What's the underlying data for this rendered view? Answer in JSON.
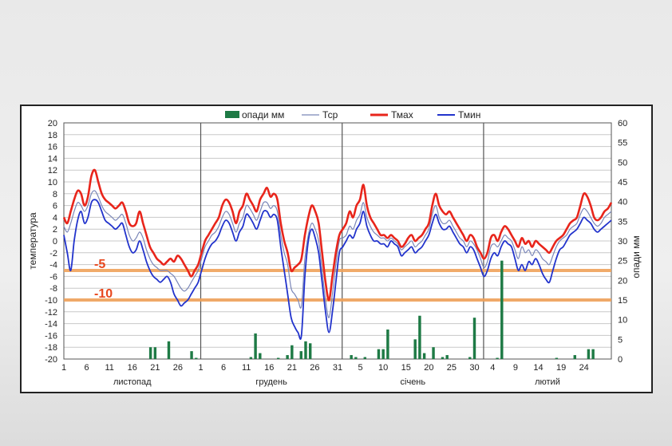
{
  "chart_data": {
    "type": "line",
    "title": "",
    "ylabel": "температура",
    "y2label": "опади мм",
    "ylim": [
      -20,
      20
    ],
    "y2lim": [
      0,
      60
    ],
    "yticks": [
      -20,
      -18,
      -16,
      -14,
      -12,
      -10,
      -8,
      -6,
      -4,
      -2,
      0,
      2,
      4,
      6,
      8,
      10,
      12,
      14,
      16,
      18,
      20
    ],
    "y2ticks": [
      0,
      5,
      10,
      15,
      20,
      25,
      30,
      35,
      40,
      45,
      50,
      55,
      60
    ],
    "xlim": [
      1,
      121
    ],
    "grid": true,
    "legend_position": "top",
    "legend": [
      {
        "name": "опади мм",
        "kind": "bar",
        "color": "#1e7a45"
      },
      {
        "name": "Тср",
        "kind": "line",
        "color": "#7a86b8"
      },
      {
        "name": "Тмах",
        "kind": "line",
        "color": "#e8251b"
      },
      {
        "name": "Тмин",
        "kind": "line",
        "color": "#2233cc"
      }
    ],
    "x_tick_labels": [
      {
        "x": 1,
        "label": "1"
      },
      {
        "x": 6,
        "label": "6"
      },
      {
        "x": 11,
        "label": "11"
      },
      {
        "x": 16,
        "label": "16"
      },
      {
        "x": 21,
        "label": "21"
      },
      {
        "x": 26,
        "label": "26"
      },
      {
        "x": 31,
        "label": "1"
      },
      {
        "x": 36,
        "label": "6"
      },
      {
        "x": 41,
        "label": "11"
      },
      {
        "x": 46,
        "label": "16"
      },
      {
        "x": 51,
        "label": "21"
      },
      {
        "x": 56,
        "label": "26"
      },
      {
        "x": 61,
        "label": "31"
      },
      {
        "x": 66,
        "label": "5"
      },
      {
        "x": 71,
        "label": "10"
      },
      {
        "x": 76,
        "label": "15"
      },
      {
        "x": 81,
        "label": "20"
      },
      {
        "x": 86,
        "label": "25"
      },
      {
        "x": 91,
        "label": "30"
      },
      {
        "x": 95,
        "label": "4"
      },
      {
        "x": 100,
        "label": "9"
      },
      {
        "x": 105,
        "label": "14"
      },
      {
        "x": 110,
        "label": "19"
      },
      {
        "x": 115,
        "label": "24"
      }
    ],
    "months": [
      {
        "name": "листопад",
        "x_start": 1,
        "x_end": 31
      },
      {
        "name": "грудень",
        "x_start": 31,
        "x_end": 62
      },
      {
        "name": "січень",
        "x_start": 62,
        "x_end": 93
      },
      {
        "name": "лютий",
        "x_start": 93,
        "x_end": 121
      }
    ],
    "month_dividers": [
      31,
      62,
      93
    ],
    "reference_lines": [
      {
        "y": -5,
        "label": "-5",
        "color": "#f0a25a"
      },
      {
        "y": -10,
        "label": "-10",
        "color": "#f0a25a"
      }
    ],
    "series": [
      {
        "name": "Тмах",
        "color": "#e8251b",
        "values": [
          4,
          3,
          5,
          7,
          8.5,
          8,
          6,
          7.5,
          11,
          12,
          10,
          8,
          7,
          6.5,
          6,
          5.5,
          6,
          6.5,
          5,
          3,
          2.5,
          3,
          5,
          3,
          1,
          -1,
          -2,
          -3,
          -3.5,
          -4,
          -3.5,
          -3,
          -3.5,
          -2.5,
          -3,
          -4,
          -5,
          -6,
          -5,
          -4,
          -2,
          0,
          1,
          2,
          3,
          4,
          6,
          7,
          6.5,
          5,
          3,
          5,
          6,
          8,
          7,
          6,
          5,
          7,
          8,
          9,
          7.5,
          8,
          7,
          3,
          0,
          -2,
          -5,
          -4.5,
          -4,
          -3,
          1,
          4,
          6,
          5,
          3,
          -2,
          -7,
          -10,
          -6,
          -2,
          1,
          2,
          3,
          5,
          4,
          6,
          7,
          9.5,
          6,
          4,
          3,
          2,
          1,
          1,
          0.5,
          1,
          0.5,
          0,
          -1,
          -0.5,
          0.5,
          1,
          0,
          0.5,
          1,
          2,
          3,
          6,
          8,
          6,
          5,
          4.5,
          5,
          4,
          3,
          2,
          1,
          0,
          1,
          0.5,
          -1,
          -2,
          -3,
          -2,
          0.5,
          1,
          0,
          1.5,
          2.5,
          2,
          1,
          0,
          -1,
          0.5,
          -0.5,
          0,
          -1,
          0,
          -0.5,
          -1,
          -1.5,
          -2,
          -1,
          0,
          0.5,
          1,
          2,
          3,
          3.5,
          4,
          6,
          8,
          7.5,
          6,
          4,
          3.5,
          4,
          5,
          5.5,
          6.5
        ]
      },
      {
        "name": "Тср",
        "color": "#7a86b8",
        "values": [
          2.5,
          1.5,
          3,
          5,
          6.5,
          6,
          5,
          6,
          8,
          8.5,
          7.5,
          6,
          5,
          4.5,
          4,
          3.5,
          4,
          4.5,
          3,
          1,
          0,
          0.5,
          1.5,
          0.5,
          -1.5,
          -3,
          -4,
          -4.5,
          -5,
          -5,
          -5,
          -5.5,
          -6,
          -7,
          -8,
          -8.5,
          -8,
          -7,
          -6,
          -5,
          -3,
          -1,
          0,
          1,
          1.5,
          2.5,
          4,
          5,
          4.5,
          3,
          1.5,
          3,
          4,
          6,
          5.5,
          4.5,
          3.5,
          5,
          6.5,
          6.5,
          5.5,
          6,
          5,
          1,
          -2,
          -4,
          -8,
          -9,
          -10,
          -11,
          -3,
          1,
          3,
          2,
          0,
          -5,
          -10,
          -13,
          -9,
          -4,
          0,
          0.5,
          1,
          2.5,
          2,
          3.5,
          4.5,
          6.5,
          4,
          2.5,
          1.5,
          1,
          0.5,
          0.5,
          0,
          0.5,
          0,
          -0.5,
          -1.5,
          -1,
          -0.5,
          0,
          -1,
          -0.5,
          0,
          1,
          2,
          4.5,
          6,
          4,
          3,
          3,
          3.5,
          2.5,
          1.5,
          0.5,
          0,
          -1,
          0,
          -0.5,
          -1.5,
          -3,
          -4.5,
          -3.5,
          -1,
          -0.5,
          -1,
          0,
          1,
          0.5,
          0,
          -1.5,
          -3,
          -1,
          -2,
          -1.5,
          -2.5,
          -1.5,
          -2,
          -3,
          -3.5,
          -4,
          -2.5,
          -1,
          0,
          0.5,
          1,
          2,
          2.5,
          3,
          4.5,
          5.5,
          5,
          4,
          3,
          2.5,
          3,
          4,
          4.5,
          5
        ]
      },
      {
        "name": "Тмин",
        "color": "#2233cc",
        "values": [
          1,
          -2,
          -5,
          0,
          3.5,
          5,
          3,
          4,
          6.5,
          7,
          6.5,
          5,
          3.5,
          3,
          2.5,
          2,
          2.5,
          3,
          1,
          -1,
          -2,
          -1.5,
          0,
          -1.5,
          -3.5,
          -5,
          -6,
          -6.5,
          -7,
          -6.5,
          -6,
          -7,
          -9,
          -10,
          -11,
          -10.5,
          -10,
          -9,
          -8,
          -7,
          -5,
          -3,
          -1.5,
          -0.5,
          0,
          1,
          2.5,
          3.5,
          3,
          1.5,
          0,
          1.5,
          2.5,
          4.5,
          4,
          3,
          2,
          3.5,
          5,
          5,
          4,
          4.5,
          3.5,
          -1,
          -5,
          -9,
          -13,
          -14.5,
          -15.5,
          -16,
          -6,
          0,
          2,
          0.5,
          -2,
          -7,
          -12,
          -15.5,
          -12,
          -7,
          -2,
          -1,
          0,
          1,
          0.5,
          2,
          3,
          5,
          2.5,
          1,
          0,
          0,
          -0.5,
          -0.5,
          -1,
          0,
          -0.5,
          -1,
          -2.5,
          -2,
          -1.5,
          -1,
          -2,
          -1.5,
          -1,
          0,
          1,
          3,
          4.5,
          3,
          2,
          2,
          2.5,
          1.5,
          0.5,
          -0.5,
          -1,
          -2,
          -1,
          -1.5,
          -3,
          -4.5,
          -6,
          -5,
          -3,
          -2,
          -2.5,
          -1,
          0,
          -0.5,
          -1,
          -3,
          -5,
          -4,
          -5,
          -3.5,
          -4,
          -3,
          -4,
          -5.5,
          -6.5,
          -7,
          -5,
          -3,
          -1.5,
          -1,
          0,
          1,
          1.5,
          2,
          3,
          4,
          3.5,
          3,
          2,
          1.5,
          2,
          2.5,
          3,
          3.5
        ]
      }
    ],
    "precipitation": [
      {
        "x": 20,
        "v": 3
      },
      {
        "x": 21,
        "v": 3
      },
      {
        "x": 24,
        "v": 4.5
      },
      {
        "x": 29,
        "v": 2
      },
      {
        "x": 30,
        "v": 0.3
      },
      {
        "x": 42,
        "v": 0.5
      },
      {
        "x": 43,
        "v": 6.5
      },
      {
        "x": 44,
        "v": 1.5
      },
      {
        "x": 48,
        "v": 0.3
      },
      {
        "x": 50,
        "v": 1
      },
      {
        "x": 51,
        "v": 3.5
      },
      {
        "x": 53,
        "v": 2
      },
      {
        "x": 54,
        "v": 4.5
      },
      {
        "x": 55,
        "v": 4
      },
      {
        "x": 64,
        "v": 1
      },
      {
        "x": 65,
        "v": 0.5
      },
      {
        "x": 67,
        "v": 0.5
      },
      {
        "x": 70,
        "v": 2.5
      },
      {
        "x": 71,
        "v": 2.5
      },
      {
        "x": 72,
        "v": 7.5
      },
      {
        "x": 78,
        "v": 5
      },
      {
        "x": 79,
        "v": 11
      },
      {
        "x": 80,
        "v": 1.5
      },
      {
        "x": 82,
        "v": 3
      },
      {
        "x": 84,
        "v": 0.5
      },
      {
        "x": 85,
        "v": 1
      },
      {
        "x": 90,
        "v": 0.5
      },
      {
        "x": 91,
        "v": 10.5
      },
      {
        "x": 96,
        "v": 0.3
      },
      {
        "x": 97,
        "v": 25
      },
      {
        "x": 109,
        "v": 0.3
      },
      {
        "x": 113,
        "v": 1
      },
      {
        "x": 116,
        "v": 2.5
      },
      {
        "x": 117,
        "v": 2.5
      }
    ]
  }
}
